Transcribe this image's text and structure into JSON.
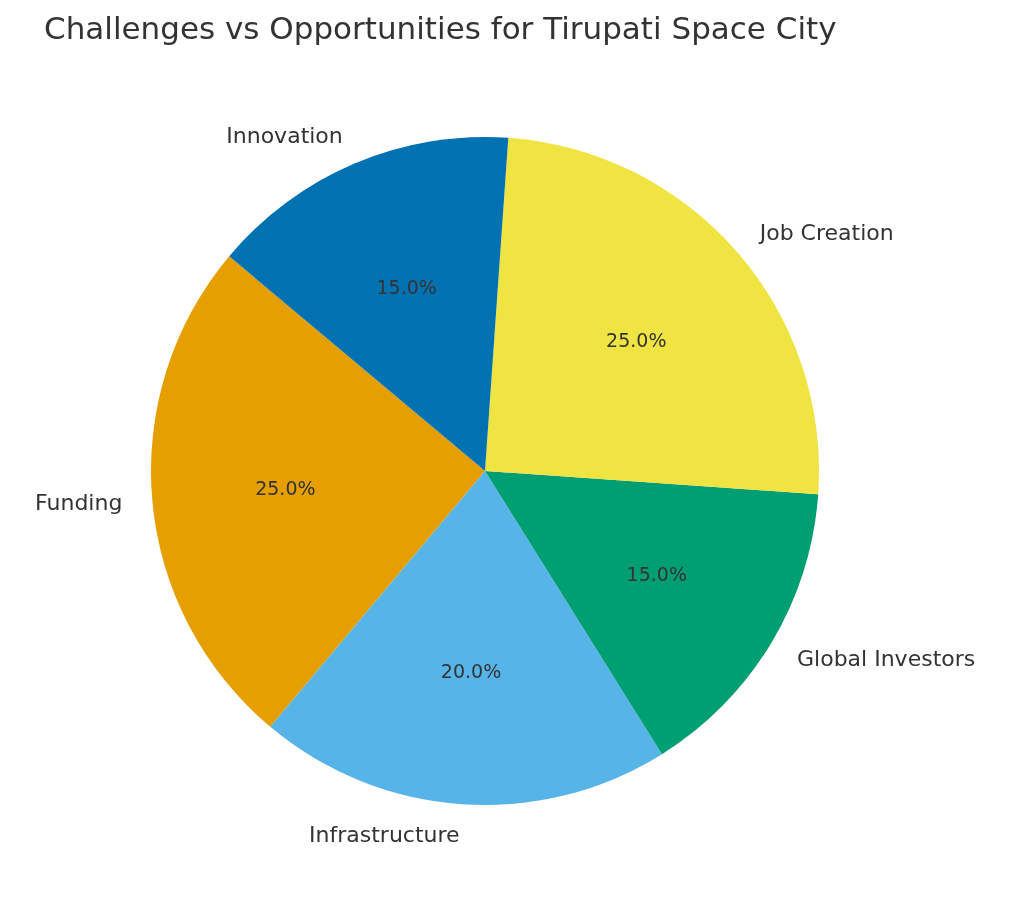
{
  "chart_data": {
    "type": "pie",
    "title": "Challenges vs Opportunities for Tirupati Space City",
    "categories": [
      "Funding",
      "Infrastructure",
      "Global Investors",
      "Job Creation",
      "Innovation"
    ],
    "values": [
      25,
      20,
      15,
      25,
      15
    ],
    "colors": [
      "#e69f00",
      "#56b4e9",
      "#009e73",
      "#f0e442",
      "#0072b2"
    ],
    "value_labels": [
      "25.0%",
      "20.0%",
      "15.0%",
      "25.0%",
      "15.0%"
    ],
    "legend": false
  }
}
